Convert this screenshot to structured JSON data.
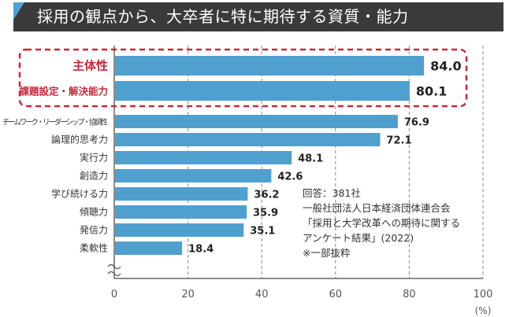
{
  "header": {
    "title": "採用の観点から、大卒者に特に期待する資質・能力"
  },
  "colors": {
    "bar": "#4f9fcf",
    "highlight_border": "#c8283a",
    "highlight_text": "#c8283a",
    "header_bg": "#3a3a3a",
    "accent": "#4ea1d3"
  },
  "note": {
    "lines": [
      "回答：381社",
      "一般社団法人日本経済団体連合会",
      "「採用と大学改革への期待に関する",
      "アンケート結果」(2022)",
      "※一部抜粋"
    ]
  },
  "chart_data": {
    "type": "bar",
    "orientation": "horizontal",
    "title": "採用の観点から、大卒者に特に期待する資質・能力",
    "categories": [
      "主体性",
      "課題設定・解決能力",
      "チームワーク・リーダーシップ・協調性",
      "論理的思考力",
      "実行力",
      "創造力",
      "学び続ける力",
      "傾聴力",
      "発信力",
      "柔軟性"
    ],
    "values": [
      84.0,
      80.1,
      76.9,
      72.1,
      48.1,
      42.6,
      36.2,
      35.9,
      35.1,
      18.4
    ],
    "value_labels": [
      "84.0",
      "80.1",
      "76.9",
      "72.1",
      "48.1",
      "42.6",
      "36.2",
      "35.9",
      "35.1",
      "18.4"
    ],
    "highlighted": [
      true,
      true,
      false,
      false,
      false,
      false,
      false,
      false,
      false,
      false
    ],
    "xlabel": "(%)",
    "ylabel": "",
    "xlim": [
      0,
      100
    ],
    "xticks": [
      0,
      20,
      40,
      60,
      80,
      100
    ],
    "xtick_labels": [
      "0",
      "20",
      "40",
      "60",
      "80",
      "100"
    ],
    "grid": "vertical dashed",
    "axis_break": true
  }
}
